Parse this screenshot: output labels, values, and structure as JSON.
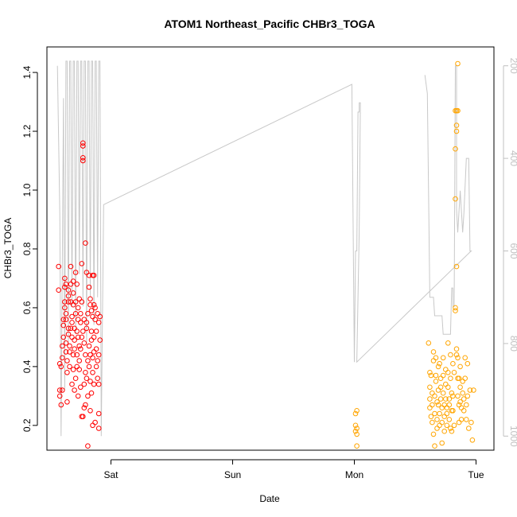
{
  "chart_data": {
    "type": "scatter",
    "title": "ATOM1 Northeast_Pacific CHBr3_TOGA",
    "xlabel": "Date",
    "ylabel": "CHBr3_TOGA",
    "x_ticks": [
      "Sat",
      "Sun",
      "Mon",
      "Tue"
    ],
    "y_ticks": [
      "0.2",
      "0.4",
      "0.6",
      "0.8",
      "1.0",
      "1.2",
      "1.4"
    ],
    "y2_ticks": [
      "200",
      "400",
      "600",
      "800",
      "1000"
    ],
    "xlim_days": [
      -0.55,
      3.1
    ],
    "ylim": [
      0.14,
      1.48
    ],
    "y2lim": [
      1010,
      190
    ],
    "colors": {
      "series_early": "#ff0000",
      "series_late": "#ffa500",
      "altitude_line": "#c8c8c8",
      "right_axis": "#c0c0c0"
    },
    "series": [
      {
        "color": "#ff0000",
        "points": [
          [
            -0.43,
            0.74
          ],
          [
            -0.43,
            0.66
          ],
          [
            -0.42,
            0.41
          ],
          [
            -0.42,
            0.32
          ],
          [
            -0.42,
            0.3
          ],
          [
            -0.41,
            0.27
          ],
          [
            -0.41,
            0.4
          ],
          [
            -0.4,
            0.43
          ],
          [
            -0.4,
            0.47
          ],
          [
            -0.4,
            0.32
          ],
          [
            -0.39,
            0.5
          ],
          [
            -0.39,
            0.54
          ],
          [
            -0.39,
            0.56
          ],
          [
            -0.38,
            0.6
          ],
          [
            -0.38,
            0.62
          ],
          [
            -0.38,
            0.67
          ],
          [
            -0.38,
            0.7
          ],
          [
            -0.37,
            0.68
          ],
          [
            -0.37,
            0.58
          ],
          [
            -0.37,
            0.56
          ],
          [
            -0.37,
            0.48
          ],
          [
            -0.37,
            0.45
          ],
          [
            -0.36,
            0.38
          ],
          [
            -0.36,
            0.28
          ],
          [
            -0.36,
            0.42
          ],
          [
            -0.35,
            0.51
          ],
          [
            -0.35,
            0.53
          ],
          [
            -0.35,
            0.62
          ],
          [
            -0.35,
            0.64
          ],
          [
            -0.35,
            0.66
          ],
          [
            -0.34,
            0.47
          ],
          [
            -0.34,
            0.45
          ],
          [
            -0.34,
            0.4
          ],
          [
            -0.33,
            0.53
          ],
          [
            -0.33,
            0.62
          ],
          [
            -0.33,
            0.68
          ],
          [
            -0.33,
            0.74
          ],
          [
            -0.32,
            0.5
          ],
          [
            -0.32,
            0.55
          ],
          [
            -0.32,
            0.57
          ],
          [
            -0.32,
            0.34
          ],
          [
            -0.31,
            0.39
          ],
          [
            -0.31,
            0.44
          ],
          [
            -0.31,
            0.61
          ],
          [
            -0.31,
            0.65
          ],
          [
            -0.31,
            0.69
          ],
          [
            -0.3,
            0.53
          ],
          [
            -0.3,
            0.49
          ],
          [
            -0.3,
            0.46
          ],
          [
            -0.3,
            0.32
          ],
          [
            -0.29,
            0.36
          ],
          [
            -0.29,
            0.58
          ],
          [
            -0.29,
            0.62
          ],
          [
            -0.29,
            0.72
          ],
          [
            -0.28,
            0.4
          ],
          [
            -0.28,
            0.44
          ],
          [
            -0.28,
            0.68
          ],
          [
            -0.28,
            0.52
          ],
          [
            -0.27,
            0.3
          ],
          [
            -0.27,
            0.5
          ],
          [
            -0.27,
            0.56
          ],
          [
            -0.27,
            0.6
          ],
          [
            -0.26,
            0.42
          ],
          [
            -0.26,
            0.47
          ],
          [
            -0.26,
            0.63
          ],
          [
            -0.26,
            0.39
          ],
          [
            -0.25,
            0.33
          ],
          [
            -0.25,
            0.55
          ],
          [
            -0.25,
            0.58
          ],
          [
            -0.25,
            0.46
          ],
          [
            -0.24,
            0.75
          ],
          [
            -0.24,
            0.62
          ],
          [
            -0.24,
            0.23
          ],
          [
            -0.24,
            0.5
          ],
          [
            -0.23,
            1.16
          ],
          [
            -0.23,
            1.15
          ],
          [
            -0.23,
            1.11
          ],
          [
            -0.23,
            1.1
          ],
          [
            -0.23,
            0.52
          ],
          [
            -0.23,
            0.23
          ],
          [
            -0.22,
            0.34
          ],
          [
            -0.22,
            0.48
          ],
          [
            -0.22,
            0.56
          ],
          [
            -0.22,
            0.26
          ],
          [
            -0.21,
            0.82
          ],
          [
            -0.21,
            0.44
          ],
          [
            -0.21,
            0.38
          ],
          [
            -0.21,
            0.27
          ],
          [
            -0.2,
            0.72
          ],
          [
            -0.2,
            0.55
          ],
          [
            -0.2,
            0.53
          ],
          [
            -0.2,
            0.36
          ],
          [
            -0.19,
            0.13
          ],
          [
            -0.19,
            0.3
          ],
          [
            -0.19,
            0.42
          ],
          [
            -0.19,
            0.58
          ],
          [
            -0.18,
            0.71
          ],
          [
            -0.18,
            0.67
          ],
          [
            -0.18,
            0.47
          ],
          [
            -0.18,
            0.4
          ],
          [
            -0.17,
            0.61
          ],
          [
            -0.17,
            0.63
          ],
          [
            -0.17,
            0.44
          ],
          [
            -0.17,
            0.35
          ],
          [
            -0.17,
            0.25
          ],
          [
            -0.16,
            0.59
          ],
          [
            -0.16,
            0.52
          ],
          [
            -0.16,
            0.49
          ],
          [
            -0.16,
            0.31
          ],
          [
            -0.15,
            0.71
          ],
          [
            -0.15,
            0.57
          ],
          [
            -0.15,
            0.43
          ],
          [
            -0.15,
            0.38
          ],
          [
            -0.15,
            0.2
          ],
          [
            -0.14,
            0.71
          ],
          [
            -0.14,
            0.61
          ],
          [
            -0.14,
            0.5
          ],
          [
            -0.14,
            0.45
          ],
          [
            -0.14,
            0.34
          ],
          [
            -0.13,
            0.21
          ],
          [
            -0.13,
            0.56
          ],
          [
            -0.13,
            0.6
          ],
          [
            -0.12,
            0.4
          ],
          [
            -0.12,
            0.46
          ],
          [
            -0.12,
            0.52
          ],
          [
            -0.11,
            0.42
          ],
          [
            -0.11,
            0.36
          ],
          [
            -0.11,
            0.58
          ],
          [
            -0.1,
            0.19
          ],
          [
            -0.1,
            0.34
          ],
          [
            -0.1,
            0.44
          ],
          [
            -0.1,
            0.55
          ],
          [
            -0.1,
            0.24
          ],
          [
            -0.09,
            0.57
          ],
          [
            -0.09,
            0.49
          ]
        ]
      },
      {
        "color": "#ffa500",
        "points": [
          [
            2.01,
            0.24
          ],
          [
            2.01,
            0.2
          ],
          [
            2.01,
            0.18
          ],
          [
            2.02,
            0.17
          ],
          [
            2.02,
            0.25
          ],
          [
            2.02,
            0.19
          ],
          [
            2.02,
            0.13
          ],
          [
            2.61,
            0.48
          ],
          [
            2.62,
            0.38
          ],
          [
            2.62,
            0.33
          ],
          [
            2.62,
            0.29
          ],
          [
            2.62,
            0.26
          ],
          [
            2.63,
            0.23
          ],
          [
            2.63,
            0.37
          ],
          [
            2.64,
            0.31
          ],
          [
            2.64,
            0.27
          ],
          [
            2.64,
            0.21
          ],
          [
            2.65,
            0.45
          ],
          [
            2.65,
            0.42
          ],
          [
            2.65,
            0.17
          ],
          [
            2.66,
            0.13
          ],
          [
            2.66,
            0.24
          ],
          [
            2.66,
            0.3
          ],
          [
            2.67,
            0.43
          ],
          [
            2.67,
            0.37
          ],
          [
            2.67,
            0.35
          ],
          [
            2.68,
            0.28
          ],
          [
            2.68,
            0.22
          ],
          [
            2.68,
            0.19
          ],
          [
            2.69,
            0.27
          ],
          [
            2.69,
            0.32
          ],
          [
            2.69,
            0.4
          ],
          [
            2.7,
            0.41
          ],
          [
            2.7,
            0.24
          ],
          [
            2.7,
            0.2
          ],
          [
            2.71,
            0.33
          ],
          [
            2.71,
            0.36
          ],
          [
            2.71,
            0.29
          ],
          [
            2.72,
            0.26
          ],
          [
            2.72,
            0.14
          ],
          [
            2.72,
            0.21
          ],
          [
            2.73,
            0.43
          ],
          [
            2.73,
            0.37
          ],
          [
            2.73,
            0.31
          ],
          [
            2.74,
            0.27
          ],
          [
            2.74,
            0.23
          ],
          [
            2.74,
            0.18
          ],
          [
            2.75,
            0.39
          ],
          [
            2.75,
            0.34
          ],
          [
            2.75,
            0.29
          ],
          [
            2.76,
            0.26
          ],
          [
            2.76,
            0.24
          ],
          [
            2.76,
            0.2
          ],
          [
            2.77,
            0.48
          ],
          [
            2.77,
            0.38
          ],
          [
            2.77,
            0.33
          ],
          [
            2.78,
            0.29
          ],
          [
            2.78,
            0.27
          ],
          [
            2.78,
            0.22
          ],
          [
            2.79,
            0.19
          ],
          [
            2.79,
            0.44
          ],
          [
            2.79,
            0.36
          ],
          [
            2.8,
            0.31
          ],
          [
            2.8,
            0.25
          ],
          [
            2.8,
            0.18
          ],
          [
            2.81,
            0.41
          ],
          [
            2.81,
            0.3
          ],
          [
            2.81,
            0.25
          ],
          [
            2.82,
            0.2
          ],
          [
            2.82,
            0.38
          ],
          [
            2.83,
            1.27
          ],
          [
            2.83,
            1.14
          ],
          [
            2.83,
            0.97
          ],
          [
            2.83,
            0.6
          ],
          [
            2.83,
            0.59
          ],
          [
            2.84,
            1.27
          ],
          [
            2.84,
            1.22
          ],
          [
            2.84,
            1.2
          ],
          [
            2.84,
            0.74
          ],
          [
            2.84,
            0.46
          ],
          [
            2.84,
            0.44
          ],
          [
            2.85,
            1.43
          ],
          [
            2.85,
            1.27
          ],
          [
            2.85,
            0.43
          ],
          [
            2.85,
            0.36
          ],
          [
            2.85,
            0.3
          ],
          [
            2.86,
            0.36
          ],
          [
            2.86,
            0.27
          ],
          [
            2.86,
            0.21
          ],
          [
            2.87,
            0.4
          ],
          [
            2.87,
            0.33
          ],
          [
            2.87,
            0.28
          ],
          [
            2.88,
            0.26
          ],
          [
            2.88,
            0.22
          ],
          [
            2.89,
            0.35
          ],
          [
            2.89,
            0.31
          ],
          [
            2.9,
            0.29
          ],
          [
            2.9,
            0.25
          ],
          [
            2.91,
            0.43
          ],
          [
            2.91,
            0.36
          ],
          [
            2.92,
            0.27
          ],
          [
            2.92,
            0.22
          ],
          [
            2.93,
            0.3
          ],
          [
            2.93,
            0.41
          ],
          [
            2.94,
            0.19
          ],
          [
            2.95,
            0.32
          ],
          [
            2.96,
            0.21
          ],
          [
            2.97,
            0.15
          ],
          [
            2.98,
            0.32
          ]
        ]
      }
    ],
    "altitude_line": [
      [
        -0.44,
        200
      ],
      [
        -0.42,
        520
      ],
      [
        -0.41,
        1000
      ],
      [
        -0.39,
        270
      ],
      [
        -0.38,
        900
      ],
      [
        -0.37,
        190
      ],
      [
        -0.36,
        190
      ],
      [
        -0.35,
        800
      ],
      [
        -0.34,
        190
      ],
      [
        -0.33,
        190
      ],
      [
        -0.32,
        720
      ],
      [
        -0.31,
        190
      ],
      [
        -0.3,
        190
      ],
      [
        -0.29,
        780
      ],
      [
        -0.28,
        190
      ],
      [
        -0.27,
        190
      ],
      [
        -0.26,
        650
      ],
      [
        -0.25,
        190
      ],
      [
        -0.24,
        190
      ],
      [
        -0.23,
        720
      ],
      [
        -0.22,
        190
      ],
      [
        -0.21,
        190
      ],
      [
        -0.2,
        800
      ],
      [
        -0.19,
        190
      ],
      [
        -0.18,
        190
      ],
      [
        -0.17,
        700
      ],
      [
        -0.16,
        190
      ],
      [
        -0.15,
        190
      ],
      [
        -0.14,
        760
      ],
      [
        -0.13,
        190
      ],
      [
        -0.12,
        190
      ],
      [
        -0.11,
        700
      ],
      [
        -0.1,
        190
      ],
      [
        -0.09,
        190
      ],
      [
        -0.08,
        1000
      ],
      [
        -0.06,
        500
      ],
      [
        1.98,
        240
      ],
      [
        2.0,
        840
      ],
      [
        2.01,
        600
      ],
      [
        2.02,
        600
      ],
      [
        2.03,
        300
      ],
      [
        2.04,
        300
      ],
      [
        2.04,
        280
      ],
      [
        2.05,
        280
      ],
      [
        2.04,
        560
      ],
      [
        2.02,
        840
      ],
      [
        2.96,
        600
      ],
      [
        2.95,
        600
      ],
      [
        2.94,
        400
      ],
      [
        2.92,
        400
      ],
      [
        2.9,
        520
      ],
      [
        2.89,
        560
      ],
      [
        2.87,
        470
      ],
      [
        2.85,
        560
      ],
      [
        2.84,
        510
      ],
      [
        2.84,
        200
      ],
      [
        2.83,
        200
      ],
      [
        2.82,
        720
      ],
      [
        2.81,
        720
      ],
      [
        2.81,
        680
      ],
      [
        2.8,
        680
      ],
      [
        2.79,
        780
      ],
      [
        2.73,
        780
      ],
      [
        2.72,
        740
      ],
      [
        2.66,
        740
      ],
      [
        2.65,
        700
      ],
      [
        2.62,
        700
      ],
      [
        2.6,
        260
      ],
      [
        2.58,
        220
      ]
    ]
  }
}
